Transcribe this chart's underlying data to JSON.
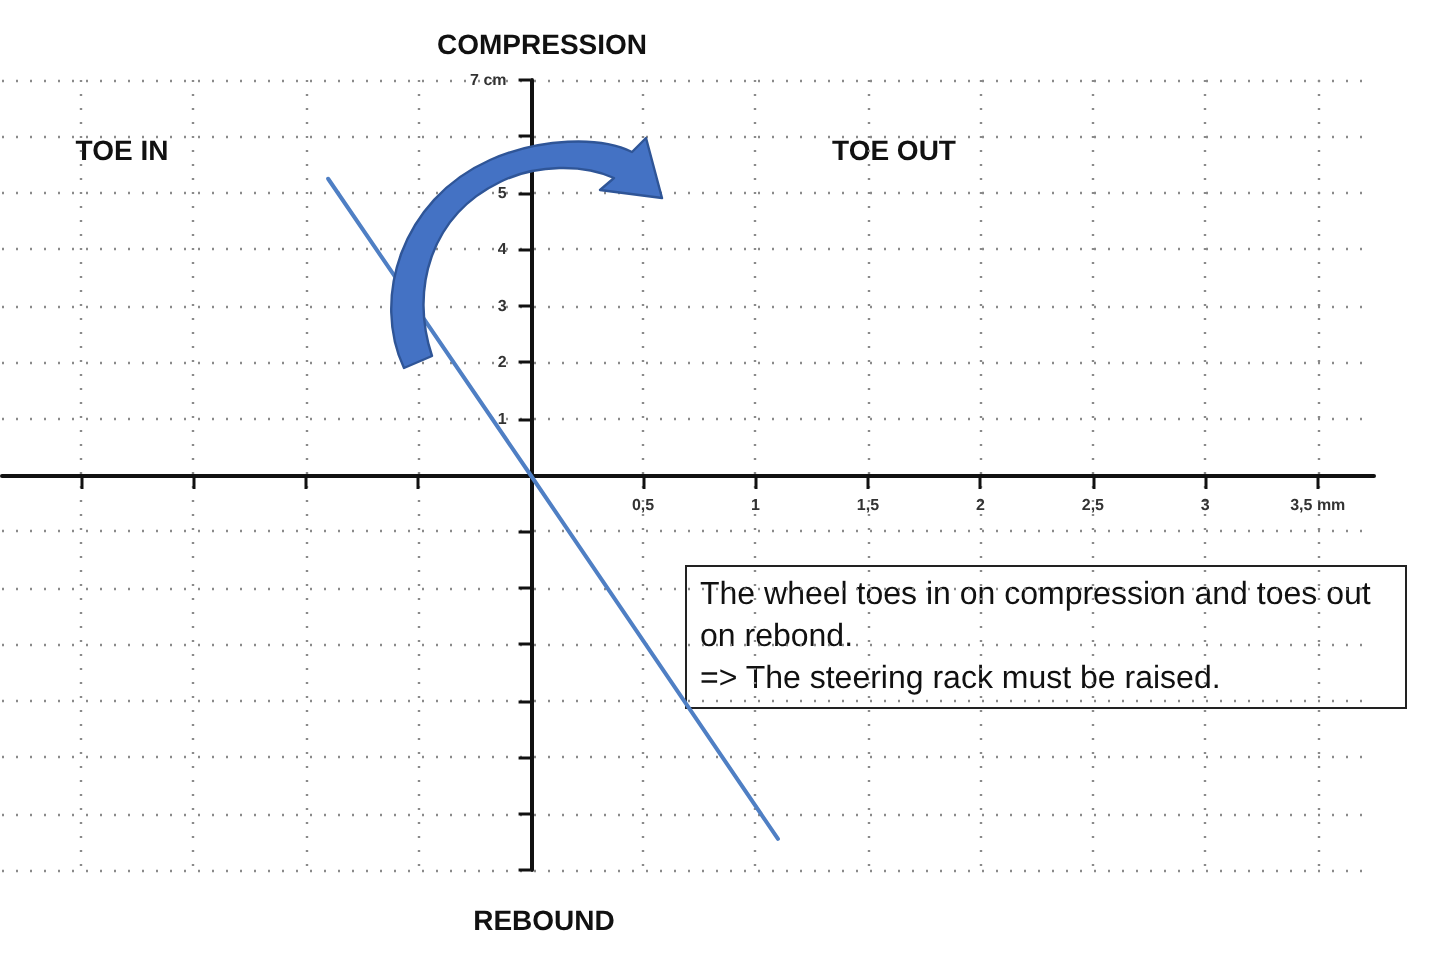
{
  "chart_data": {
    "type": "line",
    "x": [
      -0.9,
      0,
      1.1
    ],
    "values": [
      5.25,
      0,
      -6.45
    ],
    "color": "#4f7fc4",
    "xlim": [
      -2.35,
      3.75
    ],
    "ylim": [
      -7,
      7
    ],
    "xticks": [
      {
        "value": -2,
        "label": null
      },
      {
        "value": -1.5,
        "label": null
      },
      {
        "value": -1,
        "label": null
      },
      {
        "value": -0.5,
        "label": null
      },
      {
        "value": 0.5,
        "label": "0,5"
      },
      1,
      {
        "value": 1.5,
        "label": "1,5"
      },
      2,
      {
        "value": 2.5,
        "label": "2,5"
      },
      3,
      {
        "value": 3.5,
        "label": "3,5 mm"
      }
    ],
    "yticks": [
      {
        "value": -7,
        "label": null
      },
      {
        "value": -6,
        "label": null
      },
      {
        "value": -5,
        "label": null
      },
      {
        "value": -4,
        "label": null
      },
      {
        "value": -3,
        "label": null
      },
      {
        "value": -2,
        "label": null
      },
      {
        "value": -1,
        "label": null
      },
      1,
      2,
      3,
      4,
      5,
      {
        "value": 6,
        "label": null
      },
      {
        "value": 7,
        "label": "7 cm"
      }
    ],
    "grid": true,
    "marker": "none",
    "line_style": "solid",
    "annotations": [
      "COMPRESSION",
      "REBOUND",
      "TOE IN",
      "TOE OUT",
      "The wheel toes in on compression and toes out on rebond.\n=> The steering rack must be raised."
    ]
  }
}
